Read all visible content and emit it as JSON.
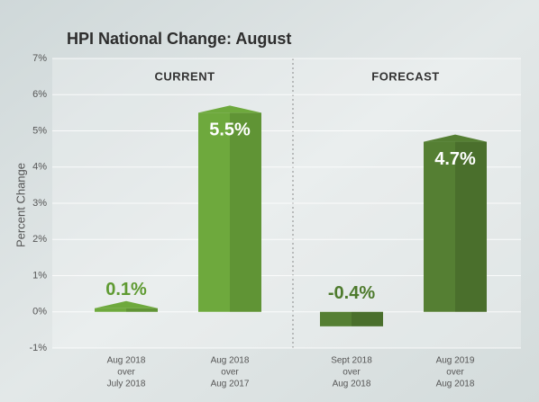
{
  "chart_data": {
    "type": "bar",
    "title": "HPI National Change: August",
    "y_label": "Percent Change",
    "sections": [
      "CURRENT",
      "FORECAST"
    ],
    "categories": [
      [
        "Aug 2018",
        "over",
        "July 2018"
      ],
      [
        "Aug 2018",
        "over",
        "Aug 2017"
      ],
      [
        "Sept 2018",
        "over",
        "Aug 2018"
      ],
      [
        "Aug 2019",
        "over",
        "Aug 2018"
      ]
    ],
    "values": [
      0.1,
      5.5,
      -0.4,
      4.7
    ],
    "value_labels": [
      "0.1%",
      "5.5%",
      "-0.4%",
      "4.7%"
    ],
    "colors": [
      "#6ea93d",
      "#6ea93d",
      "#557f33",
      "#557f33"
    ],
    "value_label_colors": [
      "#5e9a31",
      "#ffffff",
      "#4d7a2c",
      "#ffffff"
    ],
    "ylim": [
      -1,
      7
    ],
    "yticks": [
      {
        "value": -1,
        "label": "-1%"
      },
      {
        "value": 0,
        "label": "0%"
      },
      {
        "value": 1,
        "label": "1%"
      },
      {
        "value": 2,
        "label": "2%"
      },
      {
        "value": 3,
        "label": "3%"
      },
      {
        "value": 4,
        "label": "4%"
      },
      {
        "value": 5,
        "label": "5%"
      },
      {
        "value": 6,
        "label": "6%"
      },
      {
        "value": 7,
        "label": "7%"
      }
    ],
    "grid": true
  }
}
